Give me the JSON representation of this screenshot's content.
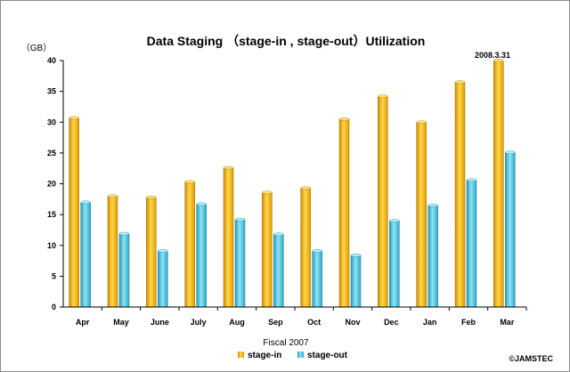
{
  "chart_data": {
    "type": "bar",
    "title": "Data Staging （stage-in , stage-out）Utilization",
    "ylabel": "（GB）",
    "xlabel": "Fiscal 2007",
    "ylim": [
      0,
      40
    ],
    "yticks": [
      "0",
      "5",
      "10",
      "15",
      "20",
      "25",
      "30",
      "35",
      "40"
    ],
    "categories": [
      "Apr",
      "May",
      "June",
      "July",
      "Aug",
      "Sep",
      "Oct",
      "Nov",
      "Dec",
      "Jan",
      "Feb",
      "Mar"
    ],
    "series": [
      {
        "name": "stage-in",
        "color": "#f5b800",
        "values": [
          30.7,
          18.0,
          17.8,
          20.3,
          22.6,
          18.6,
          19.3,
          30.5,
          34.2,
          30.0,
          36.5,
          40.0
        ]
      },
      {
        "name": "stage-out",
        "color": "#4cc0e0",
        "values": [
          17.0,
          11.9,
          9.1,
          16.7,
          14.2,
          11.8,
          9.1,
          8.4,
          14.0,
          16.5,
          20.6,
          25.1
        ]
      }
    ],
    "annotation": "2008.3.31",
    "copyright": "©JAMSTEC",
    "grid": false,
    "legend_position": "bottom-center"
  }
}
